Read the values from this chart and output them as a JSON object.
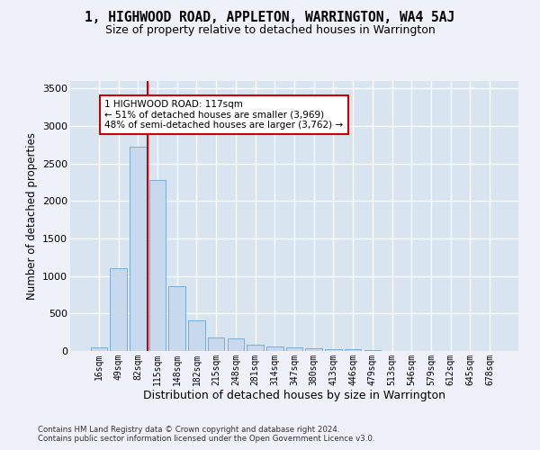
{
  "title": "1, HIGHWOOD ROAD, APPLETON, WARRINGTON, WA4 5AJ",
  "subtitle": "Size of property relative to detached houses in Warrington",
  "xlabel": "Distribution of detached houses by size in Warrington",
  "ylabel": "Number of detached properties",
  "categories": [
    "16sqm",
    "49sqm",
    "82sqm",
    "115sqm",
    "148sqm",
    "182sqm",
    "215sqm",
    "248sqm",
    "281sqm",
    "314sqm",
    "347sqm",
    "380sqm",
    "413sqm",
    "446sqm",
    "479sqm",
    "513sqm",
    "546sqm",
    "579sqm",
    "612sqm",
    "645sqm",
    "678sqm"
  ],
  "values": [
    50,
    1100,
    2730,
    2280,
    860,
    410,
    175,
    165,
    90,
    60,
    50,
    35,
    30,
    20,
    15,
    5,
    5,
    3,
    2,
    1,
    1
  ],
  "bar_color": "#c8d9ee",
  "bar_edge_color": "#7aadd4",
  "vline_x": 2.5,
  "vline_color": "#cc0000",
  "annotation_text": "1 HIGHWOOD ROAD: 117sqm\n← 51% of detached houses are smaller (3,969)\n48% of semi-detached houses are larger (3,762) →",
  "annotation_box_color": "#cc0000",
  "footer_line1": "Contains HM Land Registry data © Crown copyright and database right 2024.",
  "footer_line2": "Contains public sector information licensed under the Open Government Licence v3.0.",
  "ylim": [
    0,
    3600
  ],
  "yticks": [
    0,
    500,
    1000,
    1500,
    2000,
    2500,
    3000,
    3500
  ],
  "background_color": "#eef2f8",
  "plot_background_color": "#d8e4f0"
}
